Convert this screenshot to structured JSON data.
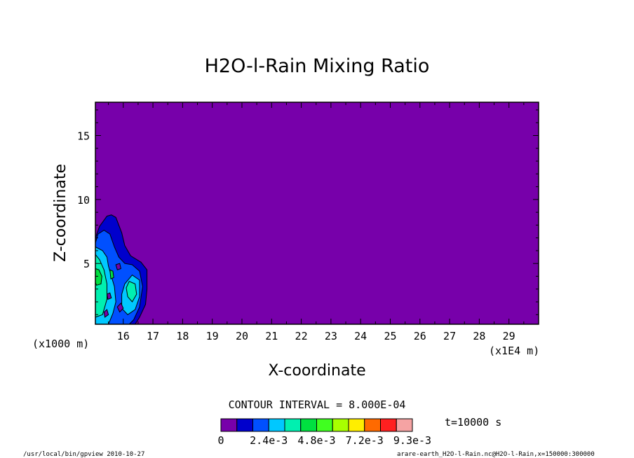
{
  "chart_data": {
    "type": "heatmap",
    "title": "H2O-l-Rain Mixing Ratio",
    "xlabel": "X-coordinate",
    "ylabel": "Z-coordinate",
    "x_unit_label": "(x1000 m)",
    "x_scale_label": "(x1E4 m)",
    "xlim": [
      15.06,
      30.0
    ],
    "ylim": [
      0.25,
      17.6
    ],
    "x_ticks": [
      16,
      17,
      18,
      19,
      20,
      21,
      22,
      23,
      24,
      25,
      26,
      27,
      28,
      29
    ],
    "y_ticks": [
      5,
      10,
      15
    ],
    "contour_interval": "CONTOUR INTERVAL = 8.000E-04",
    "time_label": "t=10000 s",
    "colorbar": {
      "colors": [
        "#7700aa",
        "#0000cc",
        "#0050ff",
        "#00c8ff",
        "#00f0b0",
        "#00e040",
        "#40ff20",
        "#a8ff00",
        "#ffee00",
        "#ff6a00",
        "#ff2020",
        "#f5a3a3"
      ],
      "tick_labels": [
        "0",
        "2.4e-3",
        "4.8e-3",
        "7.2e-3",
        "9.3e-3"
      ]
    },
    "contour_regions": [
      {
        "level": 1,
        "color": "#0000cc",
        "points": [
          [
            15.06,
            7.0
          ],
          [
            15.2,
            7.9
          ],
          [
            15.45,
            8.7
          ],
          [
            15.6,
            8.8
          ],
          [
            15.75,
            8.6
          ],
          [
            15.95,
            7.4
          ],
          [
            16.05,
            6.4
          ],
          [
            16.25,
            5.6
          ],
          [
            16.6,
            5.1
          ],
          [
            16.8,
            4.5
          ],
          [
            16.8,
            3.0
          ],
          [
            16.75,
            1.8
          ],
          [
            16.55,
            0.8
          ],
          [
            16.4,
            0.25
          ],
          [
            15.06,
            0.25
          ]
        ]
      },
      {
        "level": 2,
        "color": "#0050ff",
        "points": [
          [
            15.06,
            6.6
          ],
          [
            15.15,
            7.3
          ],
          [
            15.35,
            7.6
          ],
          [
            15.55,
            7.3
          ],
          [
            15.7,
            6.3
          ],
          [
            15.85,
            5.5
          ],
          [
            16.05,
            5.0
          ],
          [
            16.3,
            4.9
          ],
          [
            16.55,
            4.4
          ],
          [
            16.65,
            3.2
          ],
          [
            16.55,
            1.6
          ],
          [
            16.35,
            0.6
          ],
          [
            16.2,
            0.25
          ],
          [
            15.06,
            0.25
          ]
        ]
      },
      {
        "level": 3,
        "color": "#00c8ff",
        "points": [
          [
            15.06,
            6.3
          ],
          [
            15.3,
            6.0
          ],
          [
            15.45,
            5.5
          ],
          [
            15.5,
            4.8
          ],
          [
            15.6,
            4.0
          ],
          [
            15.7,
            3.2
          ],
          [
            15.75,
            2.0
          ],
          [
            15.65,
            1.1
          ],
          [
            15.5,
            0.25
          ],
          [
            15.06,
            0.25
          ]
        ]
      },
      {
        "level": 3,
        "color": "#00c8ff",
        "points": [
          [
            16.05,
            3.4
          ],
          [
            16.3,
            4.1
          ],
          [
            16.55,
            3.7
          ],
          [
            16.55,
            2.4
          ],
          [
            16.4,
            1.4
          ],
          [
            16.15,
            1.0
          ],
          [
            15.95,
            1.5
          ],
          [
            15.95,
            2.6
          ]
        ]
      },
      {
        "level": 4,
        "color": "#00f0b0",
        "points": [
          [
            15.06,
            5.7
          ],
          [
            15.2,
            5.3
          ],
          [
            15.35,
            4.5
          ],
          [
            15.45,
            3.4
          ],
          [
            15.45,
            2.2
          ],
          [
            15.3,
            1.0
          ],
          [
            15.06,
            0.8
          ]
        ]
      },
      {
        "level": 4,
        "color": "#00f0b0",
        "points": [
          [
            16.2,
            3.6
          ],
          [
            16.4,
            3.4
          ],
          [
            16.45,
            2.6
          ],
          [
            16.3,
            2.0
          ],
          [
            16.15,
            2.4
          ],
          [
            16.1,
            3.1
          ]
        ]
      },
      {
        "level": 5,
        "color": "#00e040",
        "points": [
          [
            15.06,
            4.6
          ],
          [
            15.18,
            4.5
          ],
          [
            15.28,
            4.0
          ],
          [
            15.25,
            3.4
          ],
          [
            15.1,
            3.3
          ],
          [
            15.06,
            3.5
          ]
        ]
      },
      {
        "level": 5,
        "color": "#00e040",
        "points": [
          [
            15.55,
            4.5
          ],
          [
            15.65,
            4.4
          ],
          [
            15.68,
            3.9
          ],
          [
            15.58,
            3.8
          ]
        ]
      },
      {
        "level": 0,
        "color": "#7700aa",
        "points": [
          [
            15.75,
            4.9
          ],
          [
            15.88,
            5.0
          ],
          [
            15.92,
            4.6
          ],
          [
            15.8,
            4.5
          ]
        ]
      },
      {
        "level": 0,
        "color": "#7700aa",
        "points": [
          [
            15.45,
            2.6
          ],
          [
            15.55,
            2.7
          ],
          [
            15.6,
            2.3
          ],
          [
            15.48,
            2.2
          ]
        ]
      },
      {
        "level": 0,
        "color": "#7700aa",
        "points": [
          [
            15.8,
            1.6
          ],
          [
            15.92,
            1.9
          ],
          [
            16.0,
            1.5
          ],
          [
            15.88,
            1.2
          ]
        ]
      },
      {
        "level": 0,
        "color": "#7700aa",
        "points": [
          [
            15.35,
            1.2
          ],
          [
            15.45,
            1.4
          ],
          [
            15.5,
            1.0
          ],
          [
            15.38,
            0.8
          ]
        ]
      }
    ]
  },
  "footer": {
    "program": "/usr/local/bin/gpview   2010-10-27",
    "source": "arare-earth_H2O-l-Rain.nc@H2O-l-Rain,x=150000:300000"
  }
}
